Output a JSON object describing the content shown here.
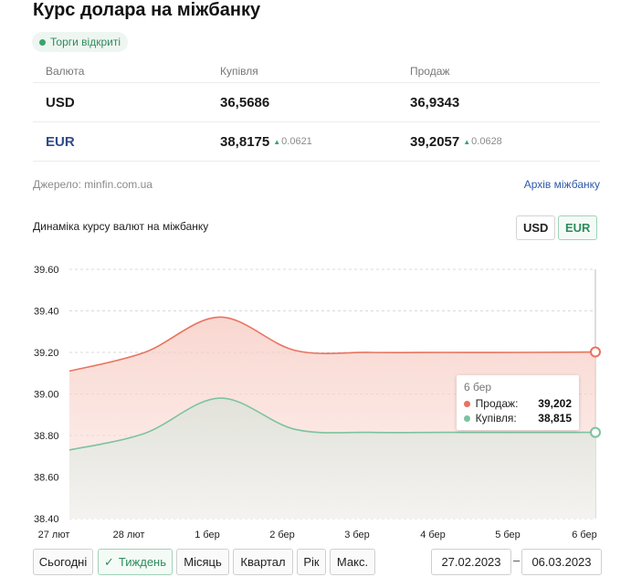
{
  "title": "Курс долара на міжбанку",
  "status_badge": "Торги відкриті",
  "table": {
    "headers": [
      "Валюта",
      "Купівля",
      "Продаж"
    ],
    "rows": [
      {
        "currency": "USD",
        "buy": "36,5686",
        "buy_delta": "",
        "sell": "36,9343",
        "sell_delta": ""
      },
      {
        "currency": "EUR",
        "buy": "38,8175",
        "buy_delta": "0.0621",
        "sell": "39,2057",
        "sell_delta": "0.0628"
      }
    ]
  },
  "source": "Джерело: minfin.com.ua",
  "archive_link": "Архів міжбанку",
  "dynamics_title": "Динаміка курсу валют на міжбанку",
  "currency_toggle": {
    "usd": "USD",
    "eur": "EUR",
    "selected": "EUR"
  },
  "chart_data": {
    "type": "area",
    "x": [
      "27 лют",
      "28 лют",
      "1 бер",
      "2 бер",
      "3 бер",
      "4 бер",
      "5 бер",
      "6 бер"
    ],
    "y_ticks": [
      "39.60",
      "39.40",
      "39.20",
      "39.00",
      "38.80",
      "38.60",
      "38.40"
    ],
    "ylim": [
      38.4,
      39.6
    ],
    "series": [
      {
        "name": "Продаж",
        "color": "#e8735f",
        "values": [
          39.11,
          39.2,
          39.37,
          39.21,
          39.2,
          39.2,
          39.2,
          39.202
        ]
      },
      {
        "name": "Купівля",
        "color": "#7cc3a0",
        "values": [
          38.73,
          38.81,
          38.98,
          38.83,
          38.815,
          38.815,
          38.815,
          38.815
        ]
      }
    ],
    "grid": true
  },
  "tooltip": {
    "date": "6 бер",
    "sell_label": "Продаж:",
    "sell_value": "39,202",
    "buy_label": "Купівля:",
    "buy_value": "38,815"
  },
  "periods": [
    "Сьогодні",
    "Тиждень",
    "Місяць",
    "Квартал",
    "Рік",
    "Макс."
  ],
  "active_period": "Тиждень",
  "date_from": "27.02.2023",
  "date_to": "06.03.2023",
  "dash": "–"
}
